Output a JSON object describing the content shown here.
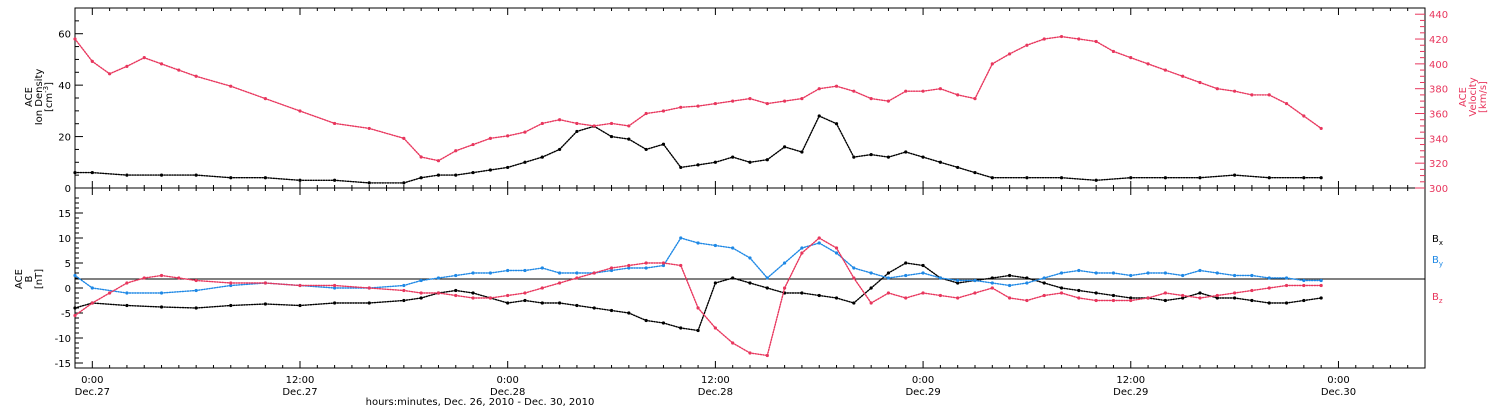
{
  "x_axis": {
    "caption": "hours:minutes, Dec. 26, 2010 - Dec. 30, 2010",
    "ticks": [
      {
        "t": 0,
        "time": "0:00",
        "date": "Dec.27"
      },
      {
        "t": 12,
        "time": "12:00",
        "date": "Dec.27"
      },
      {
        "t": 24,
        "time": "0:00",
        "date": "Dec.28"
      },
      {
        "t": 36,
        "time": "12:00",
        "date": "Dec.28"
      },
      {
        "t": 48,
        "time": "0:00",
        "date": "Dec.29"
      },
      {
        "t": 60,
        "time": "12:00",
        "date": "Dec.29"
      },
      {
        "t": 72,
        "time": "0:00",
        "date": "Dec.30"
      }
    ],
    "range": [
      -1,
      77
    ]
  },
  "panels": {
    "top": {
      "left_label_lines": [
        "ACE",
        "Ion Density"
      ],
      "left_unit": "[cm",
      "left_unit_sup": "-3",
      "left_unit_close": "]",
      "left_ticks": [
        "0",
        "20",
        "40",
        "60"
      ],
      "right_label_lines": [
        "ACE",
        "Velocity",
        "[km/s]"
      ],
      "right_ticks": [
        "300",
        "320",
        "340",
        "360",
        "380",
        "400",
        "420",
        "440"
      ]
    },
    "bottom": {
      "left_label_lines": [
        "ACE",
        "B",
        "[nT]"
      ],
      "left_ticks": [
        "-15",
        "-10",
        "-5",
        "0",
        "5",
        "10",
        "15"
      ],
      "legend": [
        {
          "main": "B",
          "sub": "x",
          "color": "#000000"
        },
        {
          "main": "B",
          "sub": "y",
          "color": "#1e88e5"
        },
        {
          "main": "B",
          "sub": "z",
          "color": "#e8365d"
        }
      ]
    }
  },
  "chart_data": [
    {
      "type": "scatter",
      "title": "",
      "xlabel": "hours:minutes, Dec. 26, 2010 - Dec. 30, 2010",
      "ylabel": "ACE Ion Density [cm-3]",
      "y2label": "ACE Velocity [km/s]",
      "xlim": [
        -1,
        77
      ],
      "ylim": [
        0,
        70
      ],
      "y2lim": [
        300,
        445
      ],
      "series": [
        {
          "name": "Ion Density",
          "axis": "left",
          "color": "#000000",
          "x": [
            -1,
            0,
            2,
            4,
            6,
            8,
            10,
            12,
            14,
            16,
            18,
            19,
            20,
            21,
            22,
            23,
            24,
            25,
            26,
            27,
            28,
            29,
            30,
            31,
            32,
            33,
            34,
            35,
            36,
            37,
            38,
            39,
            40,
            41,
            42,
            43,
            44,
            45,
            46,
            47,
            48,
            49,
            50,
            51,
            52,
            54,
            56,
            58,
            60,
            62,
            64,
            66,
            68,
            70,
            71
          ],
          "y": [
            6,
            6,
            5,
            5,
            5,
            4,
            4,
            3,
            3,
            2,
            2,
            4,
            5,
            5,
            6,
            7,
            8,
            10,
            12,
            15,
            22,
            24,
            20,
            19,
            15,
            17,
            8,
            9,
            10,
            12,
            10,
            11,
            16,
            14,
            28,
            25,
            12,
            13,
            12,
            14,
            12,
            10,
            8,
            6,
            4,
            4,
            4,
            3,
            4,
            4,
            4,
            5,
            4,
            4,
            4
          ]
        },
        {
          "name": "Velocity",
          "axis": "right",
          "color": "#e8365d",
          "x": [
            -1,
            0,
            1,
            2,
            3,
            4,
            5,
            6,
            8,
            10,
            12,
            14,
            16,
            18,
            19,
            20,
            21,
            22,
            23,
            24,
            25,
            26,
            27,
            28,
            29,
            30,
            31,
            32,
            33,
            34,
            35,
            36,
            37,
            38,
            39,
            40,
            41,
            42,
            43,
            44,
            45,
            46,
            47,
            48,
            49,
            50,
            51,
            52,
            53,
            54,
            55,
            56,
            57,
            58,
            59,
            60,
            61,
            62,
            63,
            64,
            65,
            66,
            67,
            68,
            69,
            70,
            71
          ],
          "y": [
            420,
            402,
            392,
            398,
            405,
            400,
            395,
            390,
            382,
            372,
            362,
            352,
            348,
            340,
            325,
            322,
            330,
            335,
            340,
            342,
            345,
            352,
            355,
            352,
            350,
            352,
            350,
            360,
            362,
            365,
            366,
            368,
            370,
            372,
            368,
            370,
            372,
            380,
            382,
            378,
            372,
            370,
            378,
            378,
            380,
            375,
            372,
            400,
            408,
            415,
            420,
            422,
            420,
            418,
            410,
            405,
            400,
            395,
            390,
            385,
            380,
            378,
            375,
            375,
            368,
            358,
            348
          ]
        }
      ]
    },
    {
      "type": "scatter",
      "title": "",
      "xlabel": "hours:minutes, Dec. 26, 2010 - Dec. 30, 2010",
      "ylabel": "ACE B [nT]",
      "xlim": [
        -1,
        77
      ],
      "ylim": [
        -16,
        20
      ],
      "series": [
        {
          "name": "Bx",
          "color": "#000000",
          "x": [
            -1,
            0,
            2,
            4,
            6,
            8,
            10,
            12,
            14,
            16,
            18,
            19,
            20,
            21,
            22,
            23,
            24,
            25,
            26,
            27,
            28,
            29,
            30,
            31,
            32,
            33,
            34,
            35,
            36,
            37,
            38,
            39,
            40,
            41,
            42,
            43,
            44,
            45,
            46,
            47,
            48,
            49,
            50,
            51,
            52,
            53,
            54,
            55,
            56,
            57,
            58,
            59,
            60,
            61,
            62,
            63,
            64,
            65,
            66,
            67,
            68,
            69,
            70,
            71
          ],
          "y": [
            -4,
            -3,
            -3.5,
            -3.8,
            -4,
            -3.5,
            -3.2,
            -3.5,
            -3,
            -3,
            -2.5,
            -2,
            -1,
            -0.5,
            -1,
            -2,
            -3,
            -2.5,
            -3,
            -3,
            -3.5,
            -4,
            -4.5,
            -5,
            -6.5,
            -7,
            -8,
            -8.5,
            1,
            2,
            1,
            0,
            -1,
            -1,
            -1.5,
            -2,
            -3,
            0,
            3,
            5,
            4.5,
            2,
            1,
            1.5,
            2,
            2.5,
            2,
            1,
            0,
            -0.5,
            -1,
            -1.5,
            -2,
            -2,
            -2.5,
            -2,
            -1,
            -2,
            -2,
            -2.5,
            -3,
            -3,
            -2.5,
            -2
          ]
        },
        {
          "name": "By",
          "color": "#1e88e5",
          "x": [
            -1,
            0,
            2,
            4,
            6,
            8,
            10,
            12,
            14,
            16,
            18,
            19,
            20,
            21,
            22,
            23,
            24,
            25,
            26,
            27,
            28,
            29,
            30,
            31,
            32,
            33,
            34,
            35,
            36,
            37,
            38,
            39,
            40,
            41,
            42,
            43,
            44,
            45,
            46,
            47,
            48,
            49,
            50,
            51,
            52,
            53,
            54,
            55,
            56,
            57,
            58,
            59,
            60,
            61,
            62,
            63,
            64,
            65,
            66,
            67,
            68,
            69,
            70,
            71
          ],
          "y": [
            2.5,
            0,
            -1,
            -1,
            -0.5,
            0.5,
            1,
            0.5,
            0,
            0,
            0.5,
            1.5,
            2,
            2.5,
            3,
            3,
            3.5,
            3.5,
            4,
            3,
            3,
            3,
            3.5,
            4,
            4,
            4.5,
            10,
            9,
            8.5,
            8,
            6,
            2,
            5,
            8,
            9,
            7,
            4,
            3,
            2,
            2.5,
            3,
            2,
            1.5,
            1.5,
            1,
            0.5,
            1,
            2,
            3,
            3.5,
            3,
            3,
            2.5,
            3,
            3,
            2.5,
            3.5,
            3,
            2.5,
            2.5,
            2,
            2,
            1.5,
            1.5
          ]
        },
        {
          "name": "Bz",
          "color": "#e8365d",
          "x": [
            -1,
            0,
            1,
            2,
            3,
            4,
            5,
            6,
            8,
            10,
            12,
            14,
            16,
            18,
            19,
            20,
            21,
            22,
            23,
            24,
            25,
            26,
            27,
            28,
            29,
            30,
            31,
            32,
            33,
            34,
            35,
            36,
            37,
            38,
            39,
            40,
            41,
            42,
            43,
            44,
            45,
            46,
            47,
            48,
            49,
            50,
            51,
            52,
            53,
            54,
            55,
            56,
            57,
            58,
            59,
            60,
            61,
            62,
            63,
            64,
            65,
            66,
            67,
            68,
            69,
            70,
            71
          ],
          "y": [
            -5.5,
            -3,
            -1,
            1,
            2,
            2.5,
            2,
            1.5,
            1,
            1,
            0.5,
            0.5,
            0,
            -0.5,
            -1,
            -1,
            -1.5,
            -2,
            -2,
            -1.5,
            -1,
            0,
            1,
            2,
            3,
            4,
            4.5,
            5,
            5,
            4.5,
            -4,
            -8,
            -11,
            -13,
            -13.5,
            0,
            7,
            10,
            8,
            2,
            -3,
            -1,
            -2,
            -1,
            -1.5,
            -2,
            -1,
            0,
            -2,
            -2.5,
            -1.5,
            -1,
            -2,
            -2.5,
            -2.5,
            -2.5,
            -2,
            -1,
            -1.5,
            -2,
            -1.5,
            -1,
            -0.5,
            0,
            0.5,
            0.5,
            0.5
          ]
        }
      ]
    }
  ]
}
